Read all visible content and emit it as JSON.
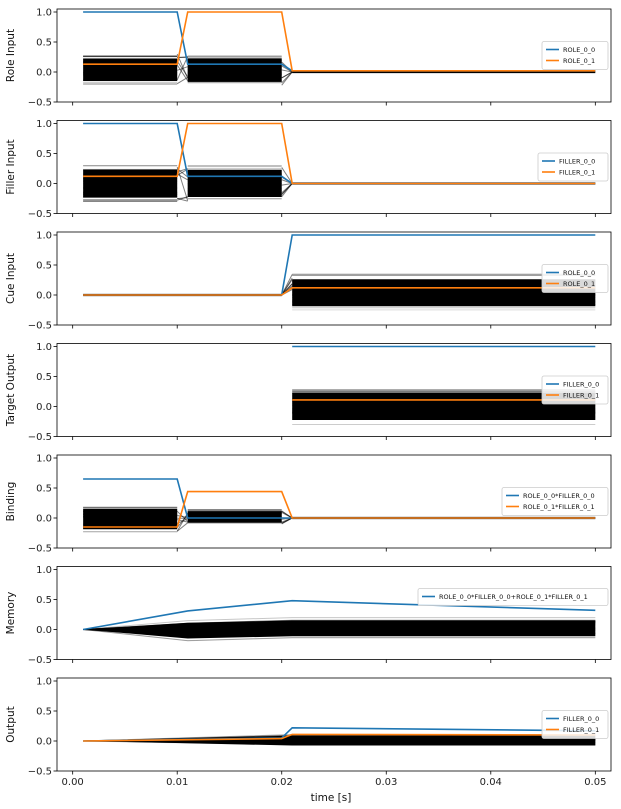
{
  "figure": {
    "xlabel": "time [s]",
    "xlim": [
      -0.0015,
      0.0515
    ],
    "xticks": [
      0.0,
      0.01,
      0.02,
      0.03,
      0.04,
      0.05
    ],
    "xtick_labels": [
      "0.00",
      "0.01",
      "0.02",
      "0.03",
      "0.04",
      "0.05"
    ],
    "colors": {
      "series1": "#1f77b4",
      "series2": "#ff7f0e",
      "background_traces": "#000000"
    }
  },
  "chart_data": [
    {
      "type": "line",
      "ylabel": "Role Input",
      "ylim": [
        -0.5,
        1.05
      ],
      "yticks": [
        -0.5,
        0.0,
        0.5,
        1.0
      ],
      "ytick_labels": [
        "−0.5",
        "0.0",
        "0.5",
        "1.0"
      ],
      "legend_placement": "center-right",
      "band": {
        "segments": [
          {
            "x": [
              0.001,
              0.01
            ],
            "lo": -0.2,
            "hi": 0.3
          },
          {
            "x": [
              0.011,
              0.02
            ],
            "lo": -0.22,
            "hi": 0.3
          }
        ],
        "flat_x": [
          0.021,
          0.05
        ]
      },
      "series": [
        {
          "name": "ROLE_0_0",
          "x": [
            0.001,
            0.01,
            0.011,
            0.02,
            0.021,
            0.05
          ],
          "y": [
            1.0,
            1.0,
            0.13,
            0.13,
            0.02,
            0.02
          ]
        },
        {
          "name": "ROLE_0_1",
          "x": [
            0.001,
            0.01,
            0.011,
            0.02,
            0.021,
            0.05
          ],
          "y": [
            0.13,
            0.13,
            1.0,
            1.0,
            0.02,
            0.02
          ]
        }
      ]
    },
    {
      "type": "line",
      "ylabel": "Filler Input",
      "ylim": [
        -0.5,
        1.05
      ],
      "yticks": [
        -0.5,
        0.0,
        0.5,
        1.0
      ],
      "ytick_labels": [
        "−0.5",
        "0.0",
        "0.5",
        "1.0"
      ],
      "legend_placement": "center-right",
      "band": {
        "segments": [
          {
            "x": [
              0.001,
              0.01
            ],
            "lo": -0.3,
            "hi": 0.3
          },
          {
            "x": [
              0.011,
              0.02
            ],
            "lo": -0.3,
            "hi": 0.3
          }
        ],
        "flat_x": [
          0.021,
          0.05
        ]
      },
      "series": [
        {
          "name": "FILLER_0_0",
          "x": [
            0.001,
            0.01,
            0.011,
            0.02,
            0.021,
            0.05
          ],
          "y": [
            1.0,
            1.0,
            0.12,
            0.12,
            0.0,
            0.0
          ]
        },
        {
          "name": "FILLER_0_1",
          "x": [
            0.001,
            0.01,
            0.011,
            0.02,
            0.021,
            0.05
          ],
          "y": [
            0.12,
            0.12,
            1.0,
            1.0,
            0.0,
            0.0
          ]
        }
      ]
    },
    {
      "type": "line",
      "ylabel": "Cue Input",
      "ylim": [
        -0.5,
        1.05
      ],
      "yticks": [
        -0.5,
        0.0,
        0.5,
        1.0
      ],
      "ytick_labels": [
        "−0.5",
        "0.0",
        "0.5",
        "1.0"
      ],
      "legend_placement": "center-right",
      "band": {
        "segments": [
          {
            "x": [
              0.021,
              0.05
            ],
            "lo": -0.25,
            "hi": 0.35
          }
        ],
        "flat_x": [
          0.001,
          0.02
        ]
      },
      "series": [
        {
          "name": "ROLE_0_0",
          "x": [
            0.001,
            0.02,
            0.021,
            0.05
          ],
          "y": [
            0.0,
            0.0,
            1.0,
            1.0
          ]
        },
        {
          "name": "ROLE_0_1",
          "x": [
            0.001,
            0.02,
            0.021,
            0.05
          ],
          "y": [
            0.0,
            0.0,
            0.12,
            0.12
          ]
        }
      ]
    },
    {
      "type": "line",
      "ylabel": "Target Output",
      "ylim": [
        -0.5,
        1.05
      ],
      "yticks": [
        -0.5,
        0.0,
        0.5,
        1.0
      ],
      "ytick_labels": [
        "−0.5",
        "0.0",
        "0.5",
        "1.0"
      ],
      "legend_placement": "center-right",
      "band": {
        "segments": [
          {
            "x": [
              0.021,
              0.05
            ],
            "lo": -0.3,
            "hi": 0.3
          }
        ],
        "flat_x": []
      },
      "series": [
        {
          "name": "FILLER_0_0",
          "x": [
            0.021,
            0.05
          ],
          "y": [
            1.0,
            1.0
          ]
        },
        {
          "name": "FILLER_0_1",
          "x": [
            0.021,
            0.05
          ],
          "y": [
            0.11,
            0.11
          ]
        }
      ]
    },
    {
      "type": "line",
      "ylabel": "Binding",
      "ylim": [
        -0.5,
        1.05
      ],
      "yticks": [
        -0.5,
        0.0,
        0.5,
        1.0
      ],
      "ytick_labels": [
        "−0.5",
        "0.0",
        "0.5",
        "1.0"
      ],
      "legend_placement": "center-right",
      "band": {
        "segments": [
          {
            "x": [
              0.001,
              0.01
            ],
            "lo": -0.25,
            "hi": 0.2
          },
          {
            "x": [
              0.011,
              0.02
            ],
            "lo": -0.1,
            "hi": 0.15
          }
        ],
        "flat_x": [
          0.021,
          0.05
        ]
      },
      "series": [
        {
          "name": "ROLE_0_0*FILLER_0_0",
          "x": [
            0.001,
            0.01,
            0.011,
            0.02,
            0.021,
            0.05
          ],
          "y": [
            0.65,
            0.65,
            0.0,
            0.0,
            0.0,
            0.0
          ]
        },
        {
          "name": "ROLE_0_1*FILLER_0_1",
          "x": [
            0.001,
            0.01,
            0.011,
            0.02,
            0.021,
            0.05
          ],
          "y": [
            -0.15,
            -0.15,
            0.44,
            0.44,
            0.0,
            0.0
          ]
        }
      ]
    },
    {
      "type": "line",
      "ylabel": "Memory",
      "ylim": [
        -0.5,
        1.05
      ],
      "yticks": [
        -0.5,
        0.0,
        0.5,
        1.0
      ],
      "ytick_labels": [
        "−0.5",
        "0.0",
        "0.5",
        "1.0"
      ],
      "legend_placement": "center-right",
      "band": {
        "segments": [
          {
            "x": [
              0.001,
              0.011,
              0.021,
              0.05
            ],
            "lo": [
              0.0,
              -0.2,
              -0.15,
              -0.15
            ],
            "hi": [
              0.0,
              0.15,
              0.2,
              0.2
            ]
          }
        ],
        "flat_x": []
      },
      "series": [
        {
          "name": "ROLE_0_0*FILLER_0_0+ROLE_0_1*FILLER_0_1",
          "x": [
            0.001,
            0.011,
            0.021,
            0.05
          ],
          "y": [
            0.0,
            0.31,
            0.48,
            0.32
          ]
        }
      ]
    },
    {
      "type": "line",
      "ylabel": "Output",
      "ylim": [
        -0.5,
        1.05
      ],
      "yticks": [
        -0.5,
        0.0,
        0.5,
        1.0
      ],
      "ytick_labels": [
        "−0.5",
        "0.0",
        "0.5",
        "1.0"
      ],
      "legend_placement": "center-right",
      "band": {
        "segments": [
          {
            "x": [
              0.001,
              0.011,
              0.021,
              0.05
            ],
            "lo": [
              0.0,
              -0.05,
              -0.1,
              -0.1
            ],
            "hi": [
              0.0,
              0.06,
              0.12,
              0.12
            ]
          }
        ],
        "flat_x": []
      },
      "series": [
        {
          "name": "FILLER_0_0",
          "x": [
            0.001,
            0.02,
            0.021,
            0.05
          ],
          "y": [
            0.0,
            0.05,
            0.22,
            0.17
          ]
        },
        {
          "name": "FILLER_0_1",
          "x": [
            0.001,
            0.02,
            0.021,
            0.05
          ],
          "y": [
            0.0,
            0.04,
            0.11,
            0.1
          ]
        }
      ]
    }
  ]
}
